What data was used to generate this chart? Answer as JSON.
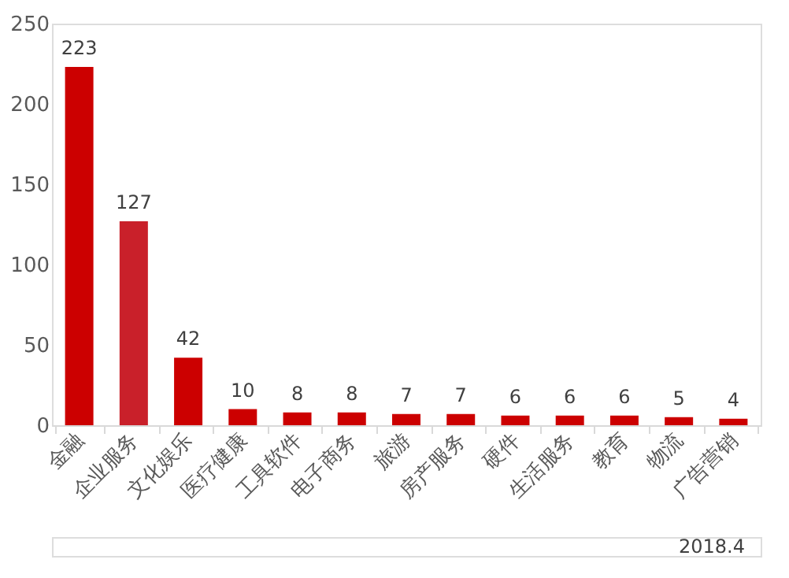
{
  "chart_data": {
    "type": "bar",
    "categories": [
      "金融",
      "企业服务",
      "文化娱乐",
      "医疗健康",
      "工具软件",
      "电子商务",
      "旅游",
      "房产服务",
      "硬件",
      "生活服务",
      "教育",
      "物流",
      "广告营销"
    ],
    "values": [
      223,
      127,
      42,
      10,
      8,
      8,
      7,
      7,
      6,
      6,
      6,
      5,
      4
    ],
    "colors": [
      "#cc0000",
      "#c9202a",
      "#cc0000",
      "#cc0000",
      "#cc0000",
      "#cc0000",
      "#cc0000",
      "#cc0000",
      "#cc0000",
      "#cc0000",
      "#cc0000",
      "#cc0000",
      "#cc0000"
    ],
    "ylim": [
      0,
      250
    ],
    "yticks": [
      0,
      50,
      100,
      150,
      200,
      250
    ],
    "grid": false,
    "data_labels": true,
    "annotations": [
      "2018.4"
    ]
  }
}
